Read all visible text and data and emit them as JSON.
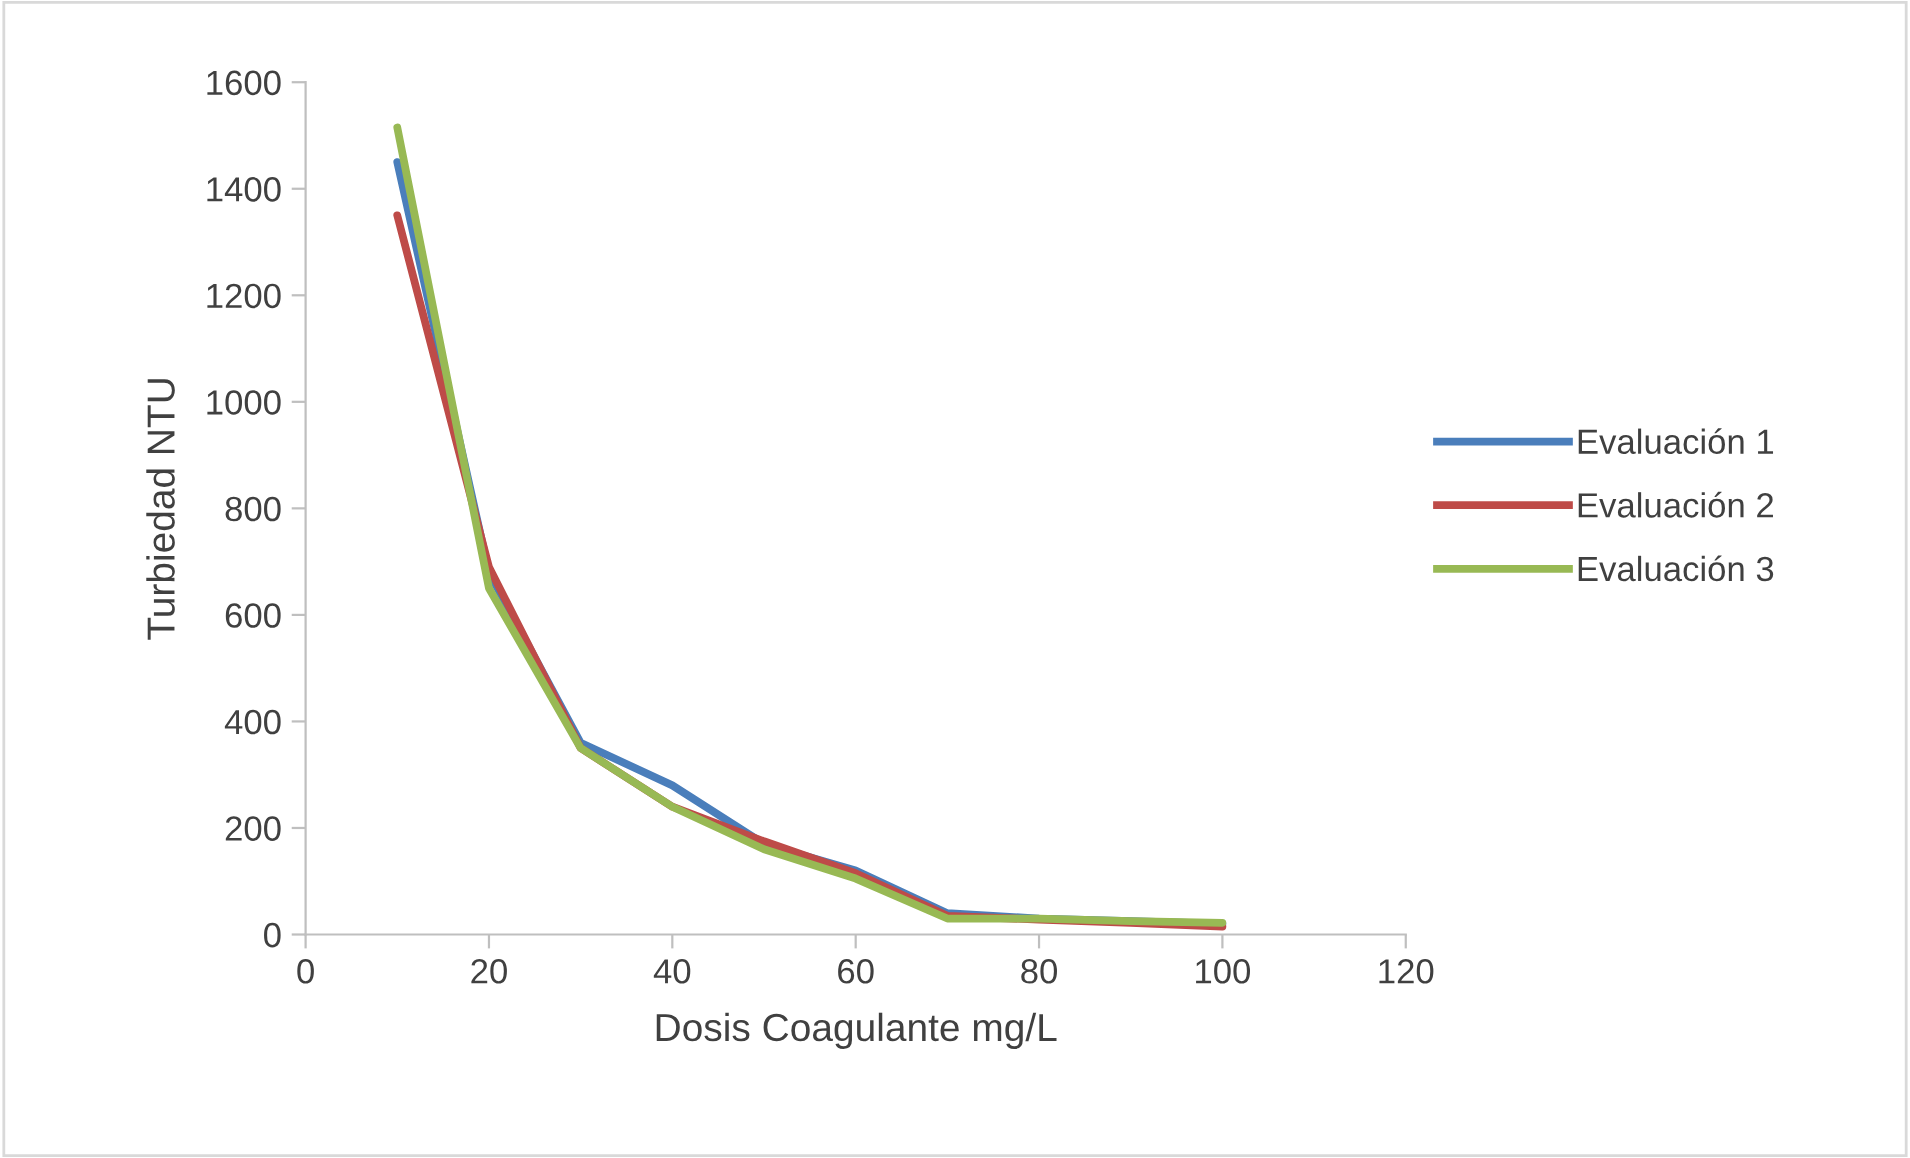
{
  "chart_data": {
    "type": "line",
    "xlabel": "Dosis Coagulante mg/L",
    "ylabel": "Turbiedad NTU",
    "x": [
      10,
      20,
      30,
      40,
      50,
      60,
      70,
      80,
      90,
      100
    ],
    "series": [
      {
        "name": "Evaluación 1",
        "color": "#4a7ebb",
        "values": [
          1450,
          680,
          360,
          280,
          170,
          120,
          40,
          30,
          25,
          20
        ]
      },
      {
        "name": "Evaluación 2",
        "color": "#be4b48",
        "values": [
          1350,
          690,
          350,
          240,
          175,
          115,
          35,
          28,
          22,
          15
        ]
      },
      {
        "name": "Evaluación 3",
        "color": "#98b954",
        "values": [
          1515,
          650,
          350,
          240,
          160,
          105,
          30,
          30,
          25,
          22
        ]
      }
    ],
    "xlim": [
      0,
      120
    ],
    "xticks": [
      0,
      20,
      40,
      60,
      80,
      100,
      120
    ],
    "ylim": [
      0,
      1600
    ],
    "yticks": [
      0,
      200,
      400,
      600,
      800,
      1000,
      1200,
      1400,
      1600
    ],
    "grid": false,
    "legend": "right",
    "marker": "none",
    "line_style": "solid"
  }
}
